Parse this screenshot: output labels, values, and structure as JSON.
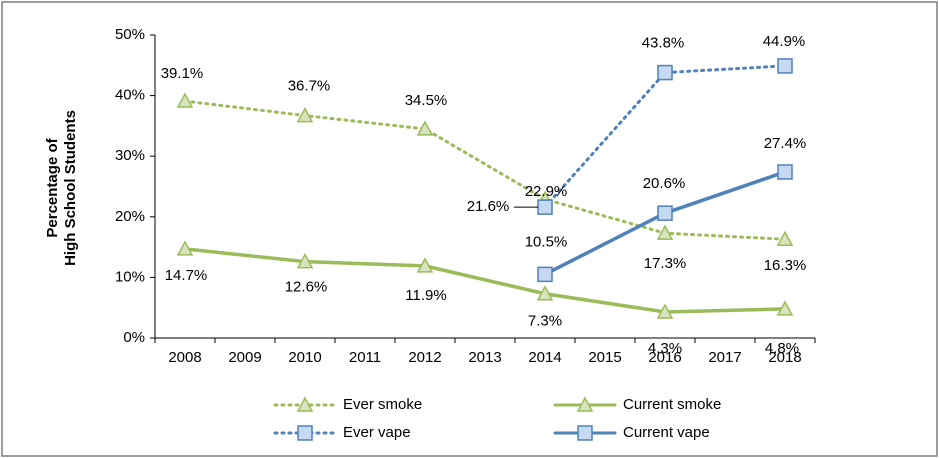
{
  "chart_data": {
    "type": "line",
    "y_label": [
      "Percentage of",
      "High School Students"
    ],
    "x": [
      2008,
      2010,
      2012,
      2014,
      2016,
      2018
    ],
    "xlim": [
      2007.5,
      2018.5
    ],
    "xticks": [
      2008,
      2009,
      2010,
      2011,
      2012,
      2013,
      2014,
      2015,
      2016,
      2017,
      2018
    ],
    "ylim": [
      0,
      50
    ],
    "yticks": [
      {
        "value": 0,
        "label": "0%"
      },
      {
        "value": 10,
        "label": "10%"
      },
      {
        "value": 20,
        "label": "20%"
      },
      {
        "value": 30,
        "label": "30%"
      },
      {
        "value": 40,
        "label": "40%"
      },
      {
        "value": 50,
        "label": "50%"
      }
    ],
    "legend": "bottom",
    "series": [
      {
        "name": "Ever smoke",
        "color": "#9bbb59",
        "dash": "dotted",
        "marker": "triangle",
        "values": [
          39.1,
          36.7,
          34.5,
          22.9,
          17.3,
          16.3
        ],
        "value_labels": [
          "39.1%",
          "36.7%",
          "34.5%",
          "22.9%",
          "17.3%",
          "16.3%"
        ]
      },
      {
        "name": "Current smoke",
        "color": "#9bbb59",
        "dash": "solid",
        "marker": "triangle",
        "values": [
          14.7,
          12.6,
          11.9,
          7.3,
          4.3,
          4.8
        ],
        "value_labels": [
          "14.7%",
          "12.6%",
          "11.9%",
          "7.3%",
          "4.3%",
          "4.8%"
        ]
      },
      {
        "name": "Ever vape",
        "color": "#4f81bd",
        "dash": "dotted",
        "marker": "square",
        "values": [
          null,
          null,
          null,
          21.6,
          43.8,
          44.9
        ],
        "value_labels": [
          null,
          null,
          null,
          "21.6%",
          "43.8%",
          "44.9%"
        ]
      },
      {
        "name": "Current vape",
        "color": "#4f81bd",
        "dash": "solid",
        "marker": "square",
        "values": [
          null,
          null,
          null,
          10.5,
          20.6,
          27.4
        ],
        "value_labels": [
          null,
          null,
          null,
          "10.5%",
          "20.6%",
          "27.4%"
        ]
      }
    ]
  }
}
